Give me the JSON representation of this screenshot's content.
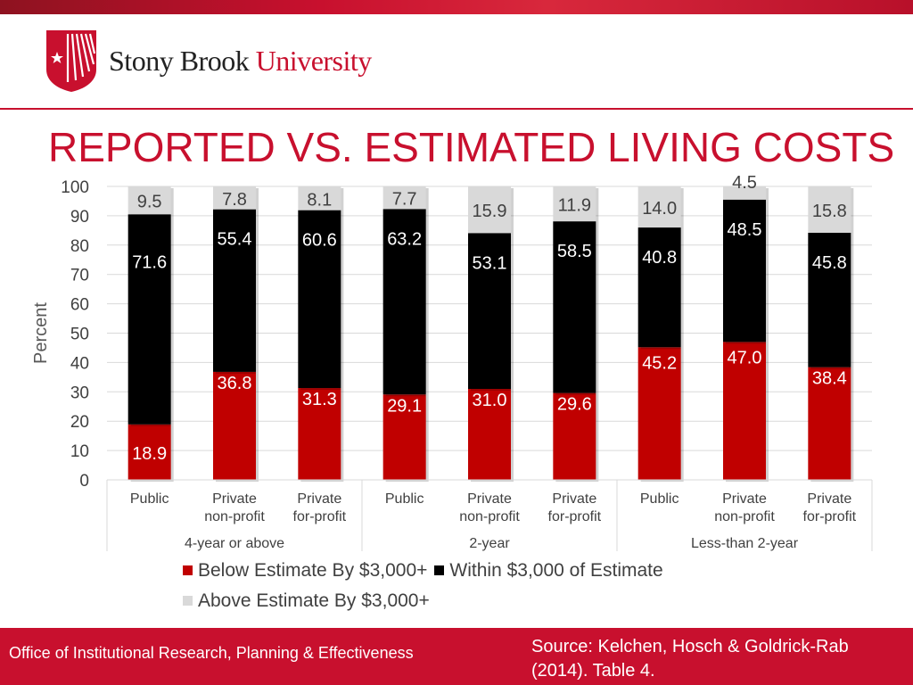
{
  "header": {
    "logo_text_primary": "Stony Brook",
    "logo_text_secondary": "University",
    "title": "REPORTED VS. ESTIMATED LIVING COSTS"
  },
  "colors": {
    "brand_red": "#c8102e",
    "below": "#c00000",
    "within": "#000000",
    "above": "#d9d9d9"
  },
  "chart_data": {
    "type": "bar",
    "stacked": true,
    "title": "",
    "ylabel": "Percent",
    "xlabel": "",
    "ylim": [
      0,
      100
    ],
    "yticks": [
      0,
      10,
      20,
      30,
      40,
      50,
      60,
      70,
      80,
      90,
      100
    ],
    "grid": true,
    "categories": [
      [
        "Public"
      ],
      [
        "Private",
        "non-profit"
      ],
      [
        "Private",
        "for-profit"
      ],
      [
        "Public"
      ],
      [
        "Private",
        "non-profit"
      ],
      [
        "Private",
        "for-profit"
      ],
      [
        "Public"
      ],
      [
        "Private",
        "non-profit"
      ],
      [
        "Private",
        "for-profit"
      ]
    ],
    "groups": [
      {
        "label": "4-year or above",
        "count": 3
      },
      {
        "label": "2-year",
        "count": 3
      },
      {
        "label": "Less-than 2-year",
        "count": 3
      }
    ],
    "series": [
      {
        "name": "Below Estimate By $3,000+",
        "color": "#c00000",
        "values": [
          18.9,
          36.8,
          31.3,
          29.1,
          31.0,
          29.6,
          45.2,
          47.0,
          38.4
        ],
        "labels": [
          "18.9",
          "36.8",
          "31.3",
          "29.1",
          "31.0",
          "29.6",
          "45.2",
          "47.0",
          "38.4"
        ]
      },
      {
        "name": "Within $3,000 of Estimate",
        "color": "#000000",
        "values": [
          71.6,
          55.4,
          60.6,
          63.2,
          53.1,
          58.5,
          40.8,
          48.5,
          45.8
        ],
        "labels": [
          "71.6",
          "55.4",
          "60.6",
          "63.2",
          "53.1",
          "58.5",
          "40.8",
          "48.5",
          "45.8"
        ]
      },
      {
        "name": "Above Estimate By $3,000+",
        "color": "#d9d9d9",
        "values": [
          9.5,
          7.8,
          8.1,
          7.7,
          15.9,
          11.9,
          14.0,
          4.5,
          15.8
        ],
        "labels": [
          "9.5",
          "7.8",
          "8.1",
          "7.7",
          "15.9",
          "11.9",
          "14.0",
          "4.5",
          "15.8"
        ]
      }
    ],
    "legend": {
      "position": "bottom"
    }
  },
  "footer": {
    "office": "Office of Institutional Research, Planning & Effectiveness",
    "source_line1": "Source: Kelchen, Hosch & Goldrick-Rab",
    "source_line2": "(2014). Table 4."
  }
}
